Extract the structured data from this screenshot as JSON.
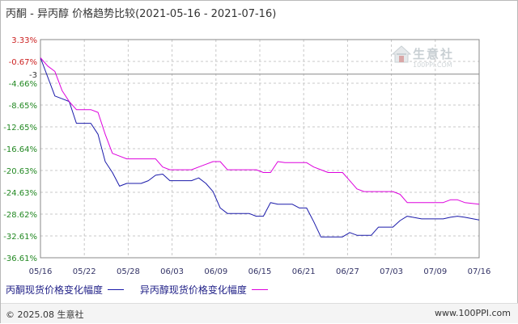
{
  "chart_data": {
    "type": "line",
    "title": "丙酮 - 异丙醇 价格趋势比较(2021-05-16 - 2021-07-16)",
    "x_ticks": [
      "05/16",
      "05/22",
      "05/28",
      "06/03",
      "06/09",
      "06/15",
      "06/21",
      "06/27",
      "07/03",
      "07/09",
      "07/16"
    ],
    "y_ticks": [
      "3.33%",
      "-0.67%",
      "-4.66%",
      "-8.65%",
      "-12.65%",
      "-16.64%",
      "-20.63%",
      "-24.63%",
      "-28.62%",
      "-32.61%",
      "-36.61%"
    ],
    "y_tick_colors": [
      "#cc2222",
      "#cc2222",
      "#228822",
      "#228822",
      "#228822",
      "#228822",
      "#228822",
      "#228822",
      "#228822",
      "#228822",
      "#228822"
    ],
    "ylim": [
      -36.61,
      3.33
    ],
    "x_range_days": [
      0,
      61
    ],
    "reference_line": {
      "value": -3,
      "label": "-3"
    },
    "grid": true,
    "legend_position": "bottom-left",
    "series": [
      {
        "name": "丙酮现货价格变化幅度",
        "color": "#1a1aaa",
        "points": [
          [
            0,
            0
          ],
          [
            2,
            -7.0
          ],
          [
            3,
            -7.5
          ],
          [
            4,
            -8.0
          ],
          [
            5,
            -12.0
          ],
          [
            7,
            -12.0
          ],
          [
            8,
            -14.0
          ],
          [
            9,
            -19.0
          ],
          [
            10,
            -21.0
          ],
          [
            11,
            -23.5
          ],
          [
            12,
            -23.0
          ],
          [
            14,
            -23.0
          ],
          [
            15,
            -22.5
          ],
          [
            16,
            -21.5
          ],
          [
            17,
            -21.3
          ],
          [
            18,
            -22.5
          ],
          [
            21,
            -22.5
          ],
          [
            22,
            -22.0
          ],
          [
            23,
            -23.0
          ],
          [
            24,
            -24.5
          ],
          [
            25,
            -27.5
          ],
          [
            26,
            -28.5
          ],
          [
            29,
            -28.5
          ],
          [
            30,
            -29.0
          ],
          [
            31,
            -29.0
          ],
          [
            32,
            -26.5
          ],
          [
            33,
            -26.8
          ],
          [
            35,
            -26.8
          ],
          [
            36,
            -27.5
          ],
          [
            37,
            -27.5
          ],
          [
            38,
            -30.0
          ],
          [
            39,
            -32.8
          ],
          [
            42,
            -32.8
          ],
          [
            43,
            -32.0
          ],
          [
            44,
            -32.5
          ],
          [
            46,
            -32.5
          ],
          [
            47,
            -31.0
          ],
          [
            49,
            -31.0
          ],
          [
            50,
            -29.8
          ],
          [
            51,
            -29.0
          ],
          [
            53,
            -29.5
          ],
          [
            56,
            -29.5
          ],
          [
            57,
            -29.2
          ],
          [
            58,
            -29.0
          ],
          [
            59,
            -29.2
          ],
          [
            61,
            -29.7
          ]
        ]
      },
      {
        "name": "异丙醇现货价格变化幅度",
        "color": "#dd00dd",
        "points": [
          [
            0,
            0
          ],
          [
            1,
            -1.5
          ],
          [
            2,
            -2.5
          ],
          [
            3,
            -6.0
          ],
          [
            4,
            -8.0
          ],
          [
            5,
            -9.5
          ],
          [
            7,
            -9.5
          ],
          [
            8,
            -10.0
          ],
          [
            9,
            -14.0
          ],
          [
            10,
            -17.5
          ],
          [
            11,
            -18.0
          ],
          [
            12,
            -18.5
          ],
          [
            16,
            -18.5
          ],
          [
            17,
            -20.0
          ],
          [
            18,
            -20.5
          ],
          [
            21,
            -20.5
          ],
          [
            22,
            -20.0
          ],
          [
            23,
            -19.5
          ],
          [
            24,
            -19.0
          ],
          [
            25,
            -19.0
          ],
          [
            26,
            -20.5
          ],
          [
            30,
            -20.5
          ],
          [
            31,
            -21.0
          ],
          [
            32,
            -21.0
          ],
          [
            33,
            -19.0
          ],
          [
            34,
            -19.2
          ],
          [
            37,
            -19.2
          ],
          [
            38,
            -20.0
          ],
          [
            39,
            -20.5
          ],
          [
            40,
            -21.0
          ],
          [
            42,
            -21.0
          ],
          [
            43,
            -22.5
          ],
          [
            44,
            -24.0
          ],
          [
            45,
            -24.5
          ],
          [
            49,
            -24.5
          ],
          [
            50,
            -25.0
          ],
          [
            51,
            -26.5
          ],
          [
            56,
            -26.5
          ],
          [
            57,
            -26.0
          ],
          [
            58,
            -26.0
          ],
          [
            59,
            -26.5
          ],
          [
            61,
            -26.8
          ]
        ]
      }
    ]
  },
  "watermark": {
    "name": "生意社",
    "url": "100PPI.COM"
  },
  "footer": {
    "copyright": "© 2025.08 生意社",
    "site": "www.100PPI.com"
  }
}
